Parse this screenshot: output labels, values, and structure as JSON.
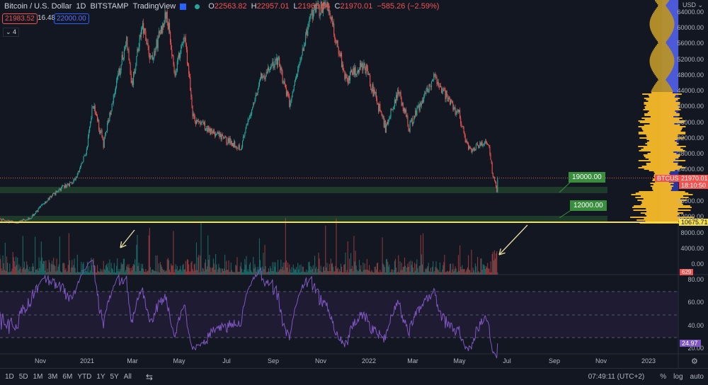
{
  "header": {
    "symbol": "Bitcoin / U.S. Dollar",
    "interval": "1D",
    "exchange": "BITSTAMP",
    "source": "TradingView",
    "open_label": "O",
    "open": "22563.82",
    "high_label": "H",
    "high": "22957.01",
    "low_label": "L",
    "low": "21965.54",
    "close_label": "C",
    "close": "21970.01",
    "change": "−585.26 (−2.59%)",
    "bid": "21983.52",
    "spread": "16.48",
    "ask": "22000.00",
    "indicators_toggle": "4"
  },
  "price_axis": {
    "currency": "USD",
    "ticks": [
      "64000.00",
      "60000.00",
      "56000.00",
      "52000.00",
      "48000.00",
      "44000.00",
      "40000.00",
      "36000.00",
      "32000.00",
      "28000.00",
      "24000.00",
      "16000.00",
      "12000.00"
    ],
    "symbol_tag": "BTCUSD",
    "last_price": "21970.01",
    "countdown": "18:10:50",
    "line_price": "10675.71"
  },
  "volume_axis": {
    "ticks": [
      "8000.00",
      "4000.00",
      "0.00"
    ],
    "last_volume": "629"
  },
  "rsi_axis": {
    "ticks": [
      "80.00",
      "60.00",
      "40.00",
      "20.00"
    ],
    "last_value": "24.97"
  },
  "time_axis": [
    "Nov",
    "2021",
    "Mar",
    "May",
    "Jul",
    "Sep",
    "Nov",
    "2022",
    "Mar",
    "May",
    "Jul",
    "Sep",
    "Nov",
    "2023"
  ],
  "annotations": {
    "level1": "19000.00",
    "level2": "12000.00"
  },
  "bottom": {
    "ranges": [
      "1D",
      "5D",
      "1M",
      "3M",
      "6M",
      "YTD",
      "1Y",
      "5Y",
      "All"
    ],
    "clock": "07:49:11 (UTC+2)",
    "percent": "%",
    "log": "log",
    "auto": "auto"
  },
  "colors": {
    "background": "#131722",
    "up": "#26a69a",
    "down": "#ef5350",
    "rsi": "#7e57c2",
    "zone": "#1e3a2a",
    "line": "#f5e050",
    "profile": "#f7b928",
    "value_area": "#2a36a0"
  },
  "chart_data": {
    "type": "candlestick",
    "ylim": [
      8000,
      66000
    ],
    "price_points": [
      [
        "2020-09-01",
        11700
      ],
      [
        "2020-10-01",
        10600
      ],
      [
        "2020-10-20",
        12000
      ],
      [
        "2020-11-05",
        15500
      ],
      [
        "2020-11-25",
        19000
      ],
      [
        "2020-12-16",
        21300
      ],
      [
        "2020-12-31",
        29000
      ],
      [
        "2021-01-08",
        41000
      ],
      [
        "2021-01-22",
        30800
      ],
      [
        "2021-02-08",
        46000
      ],
      [
        "2021-02-21",
        57000
      ],
      [
        "2021-02-28",
        45200
      ],
      [
        "2021-03-13",
        61000
      ],
      [
        "2021-03-25",
        51500
      ],
      [
        "2021-04-14",
        64000
      ],
      [
        "2021-04-25",
        49000
      ],
      [
        "2021-05-08",
        58000
      ],
      [
        "2021-05-19",
        37000
      ],
      [
        "2021-06-22",
        32500
      ],
      [
        "2021-07-20",
        29800
      ],
      [
        "2021-08-14",
        47000
      ],
      [
        "2021-09-06",
        52000
      ],
      [
        "2021-09-21",
        40500
      ],
      [
        "2021-10-20",
        64000
      ],
      [
        "2021-11-10",
        66000
      ],
      [
        "2021-12-04",
        47000
      ],
      [
        "2021-12-27",
        51000
      ],
      [
        "2022-01-24",
        35000
      ],
      [
        "2022-02-10",
        44000
      ],
      [
        "2022-02-24",
        35000
      ],
      [
        "2022-03-28",
        47500
      ],
      [
        "2022-04-30",
        38000
      ],
      [
        "2022-05-12",
        29000
      ],
      [
        "2022-06-07",
        31000
      ],
      [
        "2022-06-13",
        22500
      ],
      [
        "2022-06-18",
        19000
      ],
      [
        "2022-06-19",
        21970
      ]
    ],
    "horizontal_levels": [
      19000,
      12000,
      10675.71
    ],
    "rsi_levels": [
      70,
      50,
      30
    ],
    "volume_last": 629,
    "rsi_last": 24.97
  }
}
